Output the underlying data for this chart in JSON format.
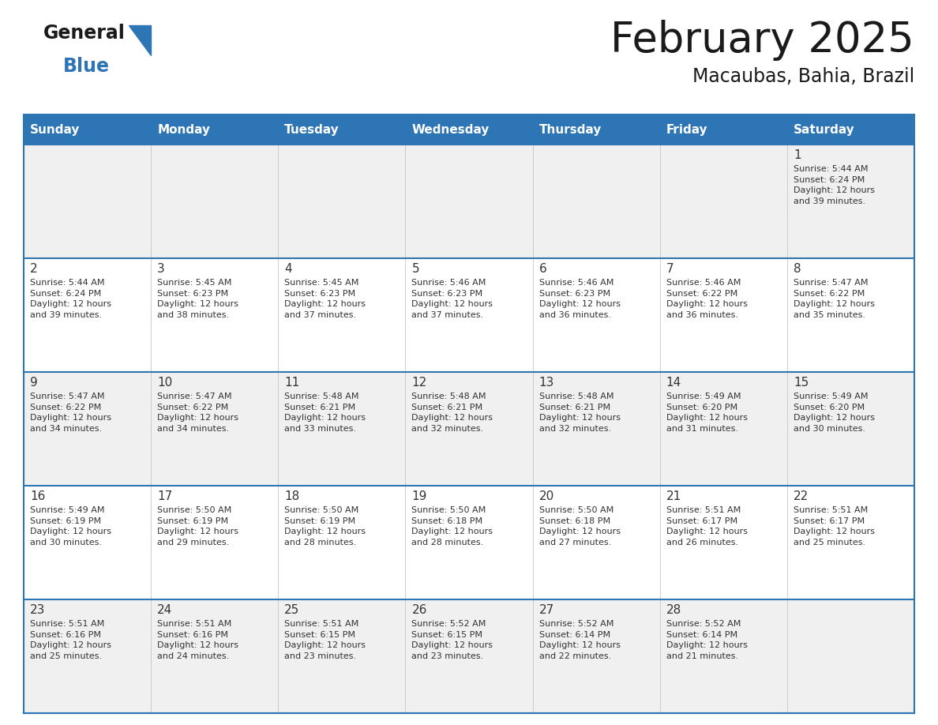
{
  "title": "February 2025",
  "subtitle": "Macaubas, Bahia, Brazil",
  "header_bg": "#2E75B6",
  "header_text": "#FFFFFF",
  "cell_bg_odd": "#F0F0F0",
  "cell_bg_even": "#FFFFFF",
  "border_color": "#2E75B6",
  "day_headers": [
    "Sunday",
    "Monday",
    "Tuesday",
    "Wednesday",
    "Thursday",
    "Friday",
    "Saturday"
  ],
  "title_color": "#1a1a1a",
  "day_num_color": "#333333",
  "text_color": "#333333",
  "calendar_data": [
    [
      {
        "day": 0,
        "info": ""
      },
      {
        "day": 0,
        "info": ""
      },
      {
        "day": 0,
        "info": ""
      },
      {
        "day": 0,
        "info": ""
      },
      {
        "day": 0,
        "info": ""
      },
      {
        "day": 0,
        "info": ""
      },
      {
        "day": 1,
        "info": "Sunrise: 5:44 AM\nSunset: 6:24 PM\nDaylight: 12 hours\nand 39 minutes."
      }
    ],
    [
      {
        "day": 2,
        "info": "Sunrise: 5:44 AM\nSunset: 6:24 PM\nDaylight: 12 hours\nand 39 minutes."
      },
      {
        "day": 3,
        "info": "Sunrise: 5:45 AM\nSunset: 6:23 PM\nDaylight: 12 hours\nand 38 minutes."
      },
      {
        "day": 4,
        "info": "Sunrise: 5:45 AM\nSunset: 6:23 PM\nDaylight: 12 hours\nand 37 minutes."
      },
      {
        "day": 5,
        "info": "Sunrise: 5:46 AM\nSunset: 6:23 PM\nDaylight: 12 hours\nand 37 minutes."
      },
      {
        "day": 6,
        "info": "Sunrise: 5:46 AM\nSunset: 6:23 PM\nDaylight: 12 hours\nand 36 minutes."
      },
      {
        "day": 7,
        "info": "Sunrise: 5:46 AM\nSunset: 6:22 PM\nDaylight: 12 hours\nand 36 minutes."
      },
      {
        "day": 8,
        "info": "Sunrise: 5:47 AM\nSunset: 6:22 PM\nDaylight: 12 hours\nand 35 minutes."
      }
    ],
    [
      {
        "day": 9,
        "info": "Sunrise: 5:47 AM\nSunset: 6:22 PM\nDaylight: 12 hours\nand 34 minutes."
      },
      {
        "day": 10,
        "info": "Sunrise: 5:47 AM\nSunset: 6:22 PM\nDaylight: 12 hours\nand 34 minutes."
      },
      {
        "day": 11,
        "info": "Sunrise: 5:48 AM\nSunset: 6:21 PM\nDaylight: 12 hours\nand 33 minutes."
      },
      {
        "day": 12,
        "info": "Sunrise: 5:48 AM\nSunset: 6:21 PM\nDaylight: 12 hours\nand 32 minutes."
      },
      {
        "day": 13,
        "info": "Sunrise: 5:48 AM\nSunset: 6:21 PM\nDaylight: 12 hours\nand 32 minutes."
      },
      {
        "day": 14,
        "info": "Sunrise: 5:49 AM\nSunset: 6:20 PM\nDaylight: 12 hours\nand 31 minutes."
      },
      {
        "day": 15,
        "info": "Sunrise: 5:49 AM\nSunset: 6:20 PM\nDaylight: 12 hours\nand 30 minutes."
      }
    ],
    [
      {
        "day": 16,
        "info": "Sunrise: 5:49 AM\nSunset: 6:19 PM\nDaylight: 12 hours\nand 30 minutes."
      },
      {
        "day": 17,
        "info": "Sunrise: 5:50 AM\nSunset: 6:19 PM\nDaylight: 12 hours\nand 29 minutes."
      },
      {
        "day": 18,
        "info": "Sunrise: 5:50 AM\nSunset: 6:19 PM\nDaylight: 12 hours\nand 28 minutes."
      },
      {
        "day": 19,
        "info": "Sunrise: 5:50 AM\nSunset: 6:18 PM\nDaylight: 12 hours\nand 28 minutes."
      },
      {
        "day": 20,
        "info": "Sunrise: 5:50 AM\nSunset: 6:18 PM\nDaylight: 12 hours\nand 27 minutes."
      },
      {
        "day": 21,
        "info": "Sunrise: 5:51 AM\nSunset: 6:17 PM\nDaylight: 12 hours\nand 26 minutes."
      },
      {
        "day": 22,
        "info": "Sunrise: 5:51 AM\nSunset: 6:17 PM\nDaylight: 12 hours\nand 25 minutes."
      }
    ],
    [
      {
        "day": 23,
        "info": "Sunrise: 5:51 AM\nSunset: 6:16 PM\nDaylight: 12 hours\nand 25 minutes."
      },
      {
        "day": 24,
        "info": "Sunrise: 5:51 AM\nSunset: 6:16 PM\nDaylight: 12 hours\nand 24 minutes."
      },
      {
        "day": 25,
        "info": "Sunrise: 5:51 AM\nSunset: 6:15 PM\nDaylight: 12 hours\nand 23 minutes."
      },
      {
        "day": 26,
        "info": "Sunrise: 5:52 AM\nSunset: 6:15 PM\nDaylight: 12 hours\nand 23 minutes."
      },
      {
        "day": 27,
        "info": "Sunrise: 5:52 AM\nSunset: 6:14 PM\nDaylight: 12 hours\nand 22 minutes."
      },
      {
        "day": 28,
        "info": "Sunrise: 5:52 AM\nSunset: 6:14 PM\nDaylight: 12 hours\nand 21 minutes."
      },
      {
        "day": 0,
        "info": ""
      }
    ]
  ],
  "logo_general_color": "#1a1a1a",
  "logo_blue_color": "#2E75B6",
  "header_font_size": 11,
  "day_num_font_size": 10,
  "info_font_size": 8.0
}
